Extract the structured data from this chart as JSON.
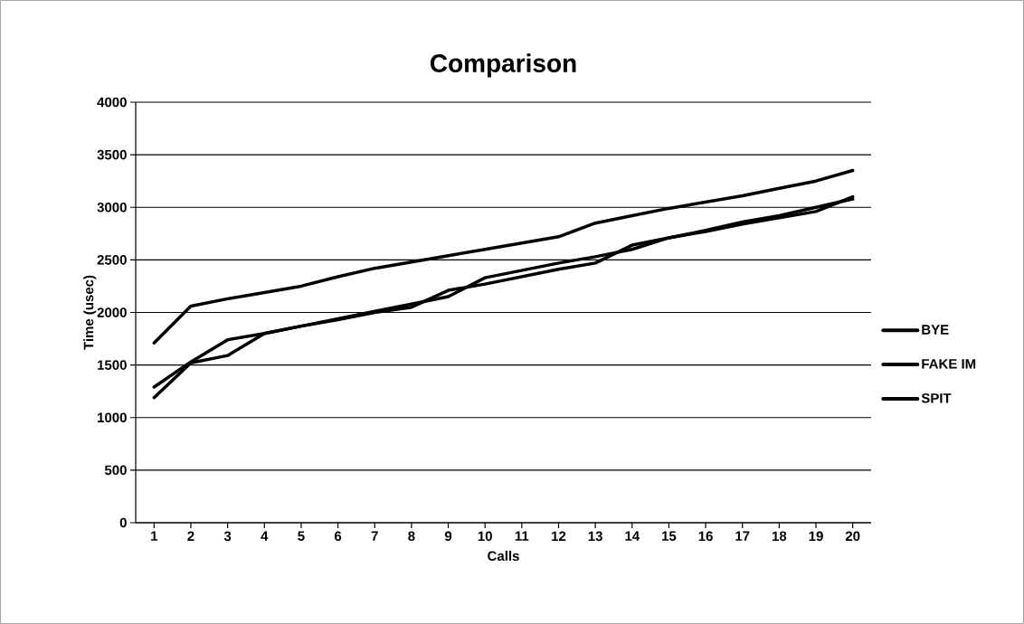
{
  "chart_data": {
    "type": "line",
    "title": "Comparison",
    "xlabel": "Calls",
    "ylabel": "Time (usec)",
    "categories": [
      "1",
      "2",
      "3",
      "4",
      "5",
      "6",
      "7",
      "8",
      "9",
      "10",
      "11",
      "12",
      "13",
      "14",
      "15",
      "16",
      "17",
      "18",
      "19",
      "20"
    ],
    "series": [
      {
        "name": "BYE",
        "color": "#000000",
        "values": [
          1710,
          2060,
          2130,
          2190,
          2250,
          2340,
          2420,
          2480,
          2540,
          2600,
          2660,
          2720,
          2850,
          2920,
          2990,
          3050,
          3110,
          3180,
          3250,
          3350
        ]
      },
      {
        "name": "FAKE IM",
        "color": "#000000",
        "values": [
          1290,
          1530,
          1740,
          1800,
          1870,
          1940,
          2010,
          2080,
          2150,
          2330,
          2400,
          2470,
          2530,
          2600,
          2710,
          2780,
          2860,
          2920,
          3000,
          3080
        ]
      },
      {
        "name": "SPIT",
        "color": "#000000",
        "values": [
          1190,
          1520,
          1590,
          1800,
          1870,
          1930,
          2000,
          2050,
          2210,
          2270,
          2340,
          2410,
          2470,
          2640,
          2710,
          2770,
          2840,
          2900,
          2960,
          3100
        ]
      }
    ],
    "ylim": [
      0,
      4000
    ],
    "yticks": [
      0,
      500,
      1000,
      1500,
      2000,
      2500,
      3000,
      3500,
      4000
    ],
    "grid": "y",
    "legend": "right",
    "marker": "none",
    "line_style": "solid"
  }
}
